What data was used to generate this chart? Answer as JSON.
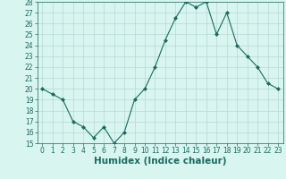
{
  "x": [
    0,
    1,
    2,
    3,
    4,
    5,
    6,
    7,
    8,
    9,
    10,
    11,
    12,
    13,
    14,
    15,
    16,
    17,
    18,
    19,
    20,
    21,
    22,
    23
  ],
  "y": [
    20,
    19.5,
    19,
    17,
    16.5,
    15.5,
    16.5,
    15,
    16,
    19,
    20,
    22,
    24.5,
    26.5,
    28,
    27.5,
    28,
    25,
    27,
    24,
    23,
    22,
    20.5,
    20
  ],
  "line_color": "#1a6b5e",
  "marker": "D",
  "marker_size": 2.0,
  "bg_color": "#d8f5f0",
  "grid_color": "#b8d8d4",
  "xlabel": "Humidex (Indice chaleur)",
  "ylim": [
    15,
    28
  ],
  "yticks": [
    15,
    16,
    17,
    18,
    19,
    20,
    21,
    22,
    23,
    24,
    25,
    26,
    27,
    28
  ],
  "xticks": [
    0,
    1,
    2,
    3,
    4,
    5,
    6,
    7,
    8,
    9,
    10,
    11,
    12,
    13,
    14,
    15,
    16,
    17,
    18,
    19,
    20,
    21,
    22,
    23
  ],
  "tick_label_fontsize": 5.5,
  "xlabel_fontsize": 7.5
}
